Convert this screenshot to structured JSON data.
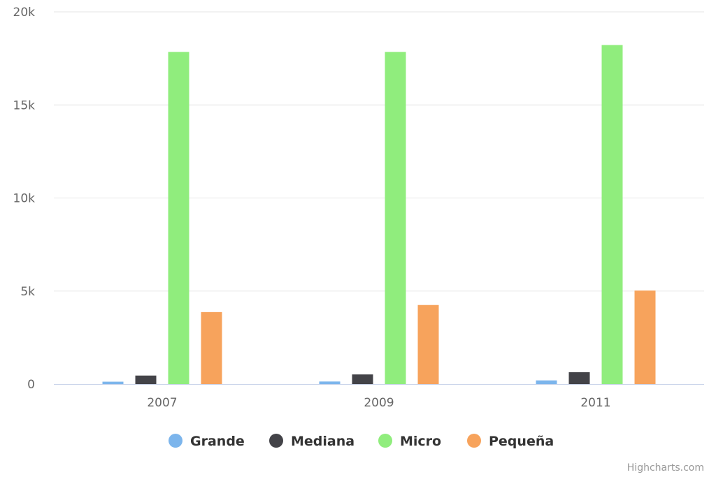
{
  "chart_data": {
    "type": "bar",
    "categories": [
      "2007",
      "2009",
      "2011"
    ],
    "series": [
      {
        "name": "Grande",
        "color": "#7cb5ec",
        "values": [
          130,
          140,
          200
        ]
      },
      {
        "name": "Mediana",
        "color": "#434348",
        "values": [
          460,
          520,
          640
        ]
      },
      {
        "name": "Micro",
        "color": "#90ed7d",
        "values": [
          17850,
          17850,
          18220
        ]
      },
      {
        "name": "Pequeña",
        "color": "#f7a35c",
        "values": [
          3870,
          4250,
          5030
        ]
      }
    ],
    "ylim": [
      0,
      20000
    ],
    "y_ticks": [
      {
        "value": 0,
        "label": "0"
      },
      {
        "value": 5000,
        "label": "5k"
      },
      {
        "value": 10000,
        "label": "10k"
      },
      {
        "value": 15000,
        "label": "15k"
      },
      {
        "value": 20000,
        "label": "20k"
      }
    ],
    "grid": true,
    "legend_position": "bottom-center"
  },
  "credits": "Highcharts.com"
}
